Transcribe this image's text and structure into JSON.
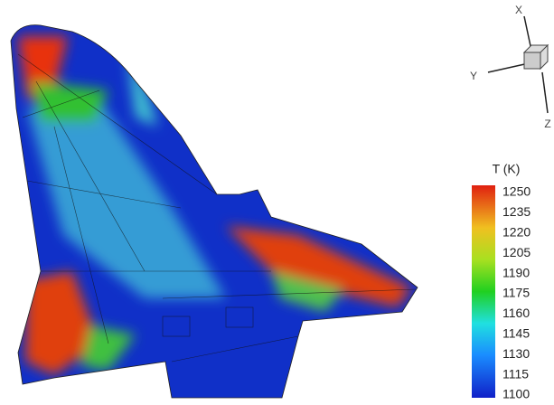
{
  "axes_triad": {
    "labels": [
      "X",
      "Y",
      "Z"
    ]
  },
  "colorbar": {
    "title": "T (K)",
    "ticks": [
      1250,
      1235,
      1220,
      1205,
      1190,
      1175,
      1160,
      1145,
      1130,
      1115,
      1100
    ]
  }
}
